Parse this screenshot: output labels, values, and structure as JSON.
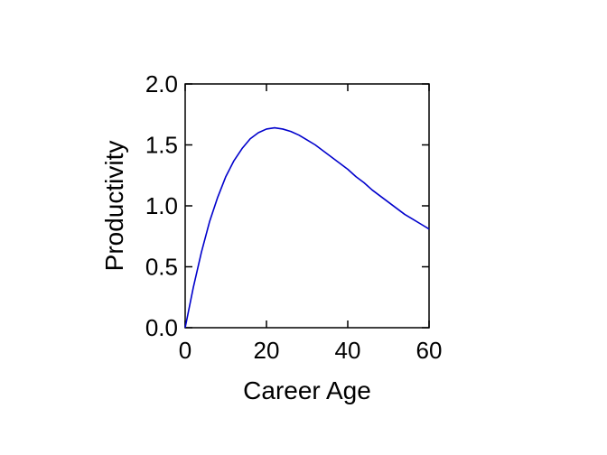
{
  "chart_data": {
    "type": "line",
    "title": "",
    "xlabel": "Career Age",
    "ylabel": "Productivity",
    "xlim": [
      0,
      60
    ],
    "ylim": [
      0,
      2.0
    ],
    "xticks": [
      0,
      20,
      40,
      60
    ],
    "xtick_labels": [
      "0",
      "20",
      "40",
      "60"
    ],
    "yticks": [
      0,
      0.5,
      1.0,
      1.5,
      2.0
    ],
    "ytick_labels": [
      "0.0",
      "0.5",
      "1.0",
      "1.5",
      "2.0"
    ],
    "grid": false,
    "legend": "none",
    "series": [
      {
        "color": "#0000cc",
        "x": [
          0,
          2,
          4,
          6,
          8,
          10,
          12,
          14,
          16,
          18,
          20,
          22,
          24,
          26,
          28,
          30,
          32,
          34,
          36,
          38,
          40,
          42,
          44,
          46,
          48,
          50,
          52,
          54,
          56,
          58,
          60
        ],
        "y": [
          0.0,
          0.33,
          0.62,
          0.87,
          1.07,
          1.24,
          1.37,
          1.47,
          1.55,
          1.6,
          1.63,
          1.64,
          1.63,
          1.61,
          1.58,
          1.54,
          1.5,
          1.45,
          1.4,
          1.35,
          1.3,
          1.24,
          1.19,
          1.13,
          1.08,
          1.03,
          0.98,
          0.93,
          0.89,
          0.85,
          0.81
        ]
      }
    ]
  }
}
